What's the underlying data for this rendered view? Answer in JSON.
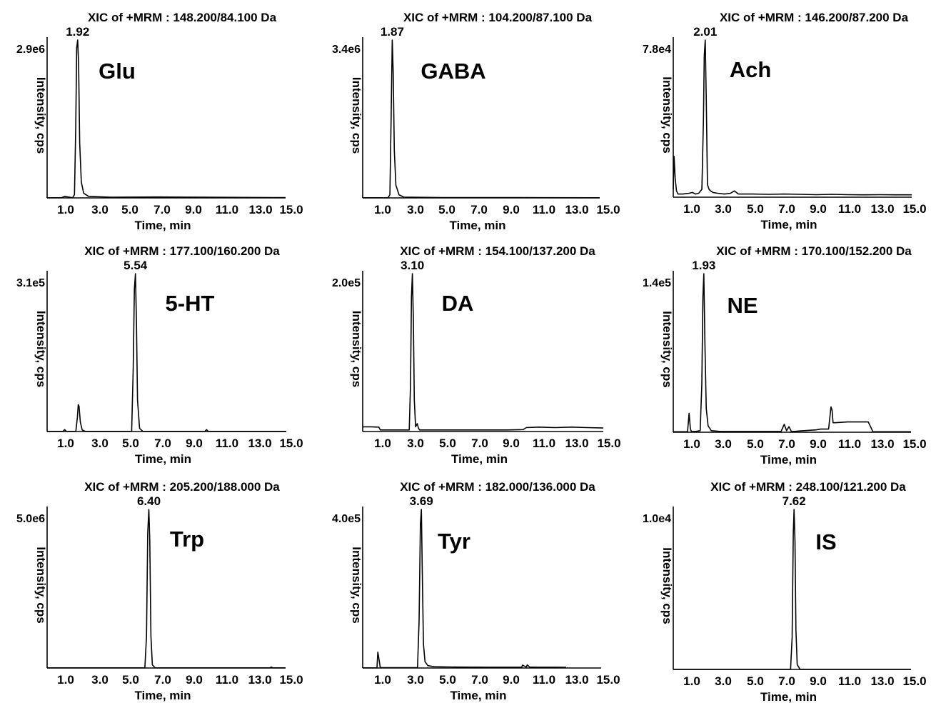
{
  "chart_data": [
    {
      "type": "line",
      "title": "XIC of +MRM : 148.200/84.100 Da",
      "compound": "Glu",
      "xlabel": "Time, min",
      "ylabel": "Intensity, cps",
      "y_max_label": "2.9e6",
      "x_ticks": [
        "1.0",
        "3.0",
        "5.0",
        "7.0",
        "9.0",
        "11.0",
        "13.0",
        "15.0"
      ],
      "peak_label": "1.92",
      "peak_rt": 1.92,
      "xlim": [
        0,
        15.0
      ],
      "series": [
        {
          "x": [
            0,
            0.9,
            1.1,
            1.6,
            1.72,
            1.8,
            1.86,
            1.92,
            1.98,
            2.05,
            2.15,
            2.3,
            2.6,
            4,
            7,
            10,
            15
          ],
          "y": [
            0.001,
            0.001,
            0.01,
            0.001,
            0.02,
            0.45,
            0.95,
            1.0,
            0.85,
            0.35,
            0.1,
            0.03,
            0.01,
            0.004,
            0.006,
            0.004,
            0.002
          ]
        }
      ]
    },
    {
      "type": "line",
      "title": "XIC of +MRM : 104.200/87.100 Da",
      "compound": "GABA",
      "xlabel": "Time, min",
      "ylabel": "Intensity, cps",
      "y_max_label": "3.4e6",
      "x_ticks": [
        "1.0",
        "3.0",
        "5.0",
        "7.0",
        "9.0",
        "11.0",
        "13.0",
        "15.0"
      ],
      "peak_label": "1.87",
      "peak_rt": 1.87,
      "xlim": [
        0,
        15.0
      ],
      "series": [
        {
          "x": [
            0,
            1.6,
            1.72,
            1.8,
            1.87,
            1.93,
            2.0,
            2.1,
            2.3,
            2.6,
            5,
            10,
            15
          ],
          "y": [
            0.001,
            0.001,
            0.02,
            0.5,
            1.0,
            0.8,
            0.3,
            0.08,
            0.02,
            0.005,
            0.002,
            0.002,
            0.001
          ]
        }
      ]
    },
    {
      "type": "line",
      "title": "XIC of +MRM : 146.200/87.200 Da",
      "compound": "Ach",
      "xlabel": "Time, min",
      "ylabel": "Intensity, cps",
      "y_max_label": "7.8e4",
      "x_ticks": [
        "1.0",
        "3.0",
        "5.0",
        "7.0",
        "9.0",
        "11.0",
        "13.0",
        "15.0"
      ],
      "peak_label": "2.01",
      "peak_rt": 2.01,
      "xlim": [
        0,
        15.0
      ],
      "series": [
        {
          "x": [
            0,
            0.05,
            0.12,
            0.2,
            0.3,
            0.6,
            1.0,
            1.2,
            1.4,
            1.6,
            1.8,
            1.9,
            1.95,
            2.01,
            2.08,
            2.15,
            2.25,
            2.35,
            2.5,
            2.8,
            3.2,
            3.6,
            3.85,
            4.1,
            4.5,
            5,
            6,
            7,
            8,
            9,
            10,
            11,
            12,
            13,
            14,
            15
          ],
          "y": [
            0.05,
            0.26,
            0.12,
            0.04,
            0.02,
            0.02,
            0.025,
            0.03,
            0.02,
            0.025,
            0.05,
            0.5,
            0.9,
            1.0,
            0.6,
            0.08,
            0.05,
            0.04,
            0.03,
            0.025,
            0.02,
            0.025,
            0.04,
            0.02,
            0.02,
            0.02,
            0.018,
            0.02,
            0.018,
            0.016,
            0.018,
            0.016,
            0.015,
            0.016,
            0.015,
            0.015
          ]
        }
      ]
    },
    {
      "type": "line",
      "title": "XIC of +MRM : 177.100/160.200 Da",
      "compound": "5-HT",
      "xlabel": "Time, min",
      "ylabel": "Intensity, cps",
      "y_max_label": "3.1e5",
      "x_ticks": [
        "1.0",
        "3.0",
        "5.0",
        "7.0",
        "9.0",
        "11.0",
        "13.0",
        "15.0"
      ],
      "peak_label": "5.54",
      "peak_rt": 5.54,
      "xlim": [
        0,
        15.0
      ],
      "series": [
        {
          "x": [
            0,
            1.0,
            1.1,
            1.2,
            1.8,
            1.9,
            1.95,
            2.0,
            2.08,
            2.2,
            2.4,
            5.3,
            5.4,
            5.47,
            5.54,
            5.6,
            5.67,
            5.8,
            6.0,
            9.9,
            10.0,
            10.1,
            15
          ],
          "y": [
            0.001,
            0.001,
            0.012,
            0.001,
            0.001,
            0.09,
            0.17,
            0.16,
            0.06,
            0.01,
            0.001,
            0.001,
            0.4,
            0.9,
            1.0,
            0.7,
            0.2,
            0.02,
            0.001,
            0.001,
            0.012,
            0.001,
            0.001
          ]
        }
      ]
    },
    {
      "type": "line",
      "title": "XIC of +MRM : 154.100/137.200 Da",
      "compound": "DA",
      "xlabel": "Time, min",
      "ylabel": "Intensity, cps",
      "y_max_label": "2.0e5",
      "x_ticks": [
        "1.0",
        "3.0",
        "5.0",
        "7.0",
        "9.0",
        "11.0",
        "13.0",
        "15.0"
      ],
      "peak_label": "3.10",
      "peak_rt": 3.1,
      "xlim": [
        0,
        15.0
      ],
      "series": [
        {
          "x": [
            0,
            0.5,
            1.0,
            1.1,
            1.3,
            2.9,
            2.98,
            3.04,
            3.1,
            3.16,
            3.22,
            3.3,
            3.4,
            3.48,
            3.55,
            3.7,
            4,
            6,
            9,
            10,
            10.2,
            11,
            12,
            13,
            14,
            15
          ],
          "y": [
            0.03,
            0.03,
            0.028,
            0.01,
            0.01,
            0.01,
            0.3,
            0.85,
            1.0,
            0.7,
            0.2,
            0.03,
            0.05,
            0.02,
            0.01,
            0.01,
            0.01,
            0.01,
            0.01,
            0.012,
            0.025,
            0.028,
            0.025,
            0.028,
            0.025,
            0.022
          ]
        }
      ]
    },
    {
      "type": "line",
      "title": "XIC of +MRM : 170.100/152.200 Da",
      "compound": "NE",
      "xlabel": "Time, min",
      "ylabel": "Intensity, cps",
      "y_max_label": "1.4e5",
      "x_ticks": [
        "1.0",
        "3.0",
        "5.0",
        "7.0",
        "9.0",
        "11.0",
        "13.0",
        "15.0"
      ],
      "peak_label": "1.93",
      "peak_rt": 1.93,
      "xlim": [
        0,
        15.0
      ],
      "series": [
        {
          "x": [
            0,
            0.9,
            1.0,
            1.08,
            1.15,
            1.4,
            1.7,
            1.8,
            1.87,
            1.93,
            2.0,
            2.08,
            2.2,
            2.4,
            3,
            5,
            6.8,
            7.0,
            7.15,
            7.3,
            7.45,
            7.6,
            8,
            9,
            9.3,
            9.8,
            9.95,
            10.02,
            10.08,
            10.2,
            11,
            12,
            12.3,
            12.6,
            13,
            15
          ],
          "y": [
            0.003,
            0.003,
            0.12,
            0.02,
            0.005,
            0.005,
            0.01,
            0.3,
            0.85,
            1.0,
            0.55,
            0.15,
            0.04,
            0.01,
            0.005,
            0.005,
            0.005,
            0.05,
            0.01,
            0.035,
            0.005,
            0.005,
            0.008,
            0.015,
            0.02,
            0.02,
            0.16,
            0.14,
            0.06,
            0.06,
            0.065,
            0.065,
            0.065,
            0.003,
            0.003,
            0.003
          ]
        }
      ]
    },
    {
      "type": "line",
      "title": "XIC of +MRM : 205.200/188.000 Da",
      "compound": "Trp",
      "xlabel": "Time, min",
      "ylabel": "Intensity, cps",
      "y_max_label": "5.0e6",
      "x_ticks": [
        "1.0",
        "3.0",
        "5.0",
        "7.0",
        "9.0",
        "11.0",
        "13.0",
        "15.0"
      ],
      "peak_label": "6.40",
      "peak_rt": 6.4,
      "xlim": [
        0,
        15.0
      ],
      "series": [
        {
          "x": [
            0,
            6.15,
            6.25,
            6.33,
            6.4,
            6.46,
            6.53,
            6.62,
            6.8,
            14.0,
            14.1,
            14.2,
            15
          ],
          "y": [
            0.001,
            0.001,
            0.2,
            0.85,
            1.0,
            0.8,
            0.2,
            0.02,
            0.001,
            0.001,
            0.006,
            0.001,
            0.001
          ]
        }
      ]
    },
    {
      "type": "line",
      "title": "XIC of +MRM : 182.000/136.000 Da",
      "compound": "Tyr",
      "xlabel": "Time, min",
      "ylabel": "Intensity, cps",
      "y_max_label": "4.0e5",
      "x_ticks": [
        "1.0",
        "3.0",
        "5.0",
        "7.0",
        "9.0",
        "11.0",
        "13.0",
        "15.0"
      ],
      "peak_label": "3.69",
      "peak_rt": 3.69,
      "xlim": [
        0,
        15.0
      ],
      "series": [
        {
          "x": [
            0,
            0.9,
            0.95,
            1.02,
            1.1,
            1.2,
            3.45,
            3.55,
            3.63,
            3.69,
            3.75,
            3.82,
            3.92,
            4.1,
            4.5,
            6,
            8,
            10.0,
            10.05,
            10.3,
            10.35,
            10.5,
            11,
            12,
            12.8
          ],
          "y": [
            0.001,
            0.001,
            0.1,
            0.06,
            0.005,
            0.002,
            0.002,
            0.3,
            0.9,
            1.0,
            0.6,
            0.15,
            0.04,
            0.015,
            0.008,
            0.006,
            0.005,
            0.005,
            0.018,
            0.006,
            0.02,
            0.006,
            0.005,
            0.005,
            0.004
          ]
        }
      ]
    },
    {
      "type": "line",
      "title": "XIC of +MRM : 248.100/121.200 Da",
      "compound": "IS",
      "xlabel": "Time, min",
      "ylabel": "Intensity, cps",
      "y_max_label": "1.0e4",
      "x_ticks": [
        "1.0",
        "3.0",
        "5.0",
        "7.0",
        "9.0",
        "11.0",
        "13.0",
        "15.0"
      ],
      "peak_label": "7.62",
      "peak_rt": 7.62,
      "xlim": [
        0,
        15.0
      ],
      "series": [
        {
          "x": [
            0,
            7.4,
            7.5,
            7.57,
            7.62,
            7.68,
            7.74,
            7.82,
            8.0,
            15
          ],
          "y": [
            0.001,
            0.001,
            0.2,
            0.85,
            1.0,
            0.8,
            0.25,
            0.03,
            0.001,
            0.001
          ]
        }
      ]
    }
  ]
}
